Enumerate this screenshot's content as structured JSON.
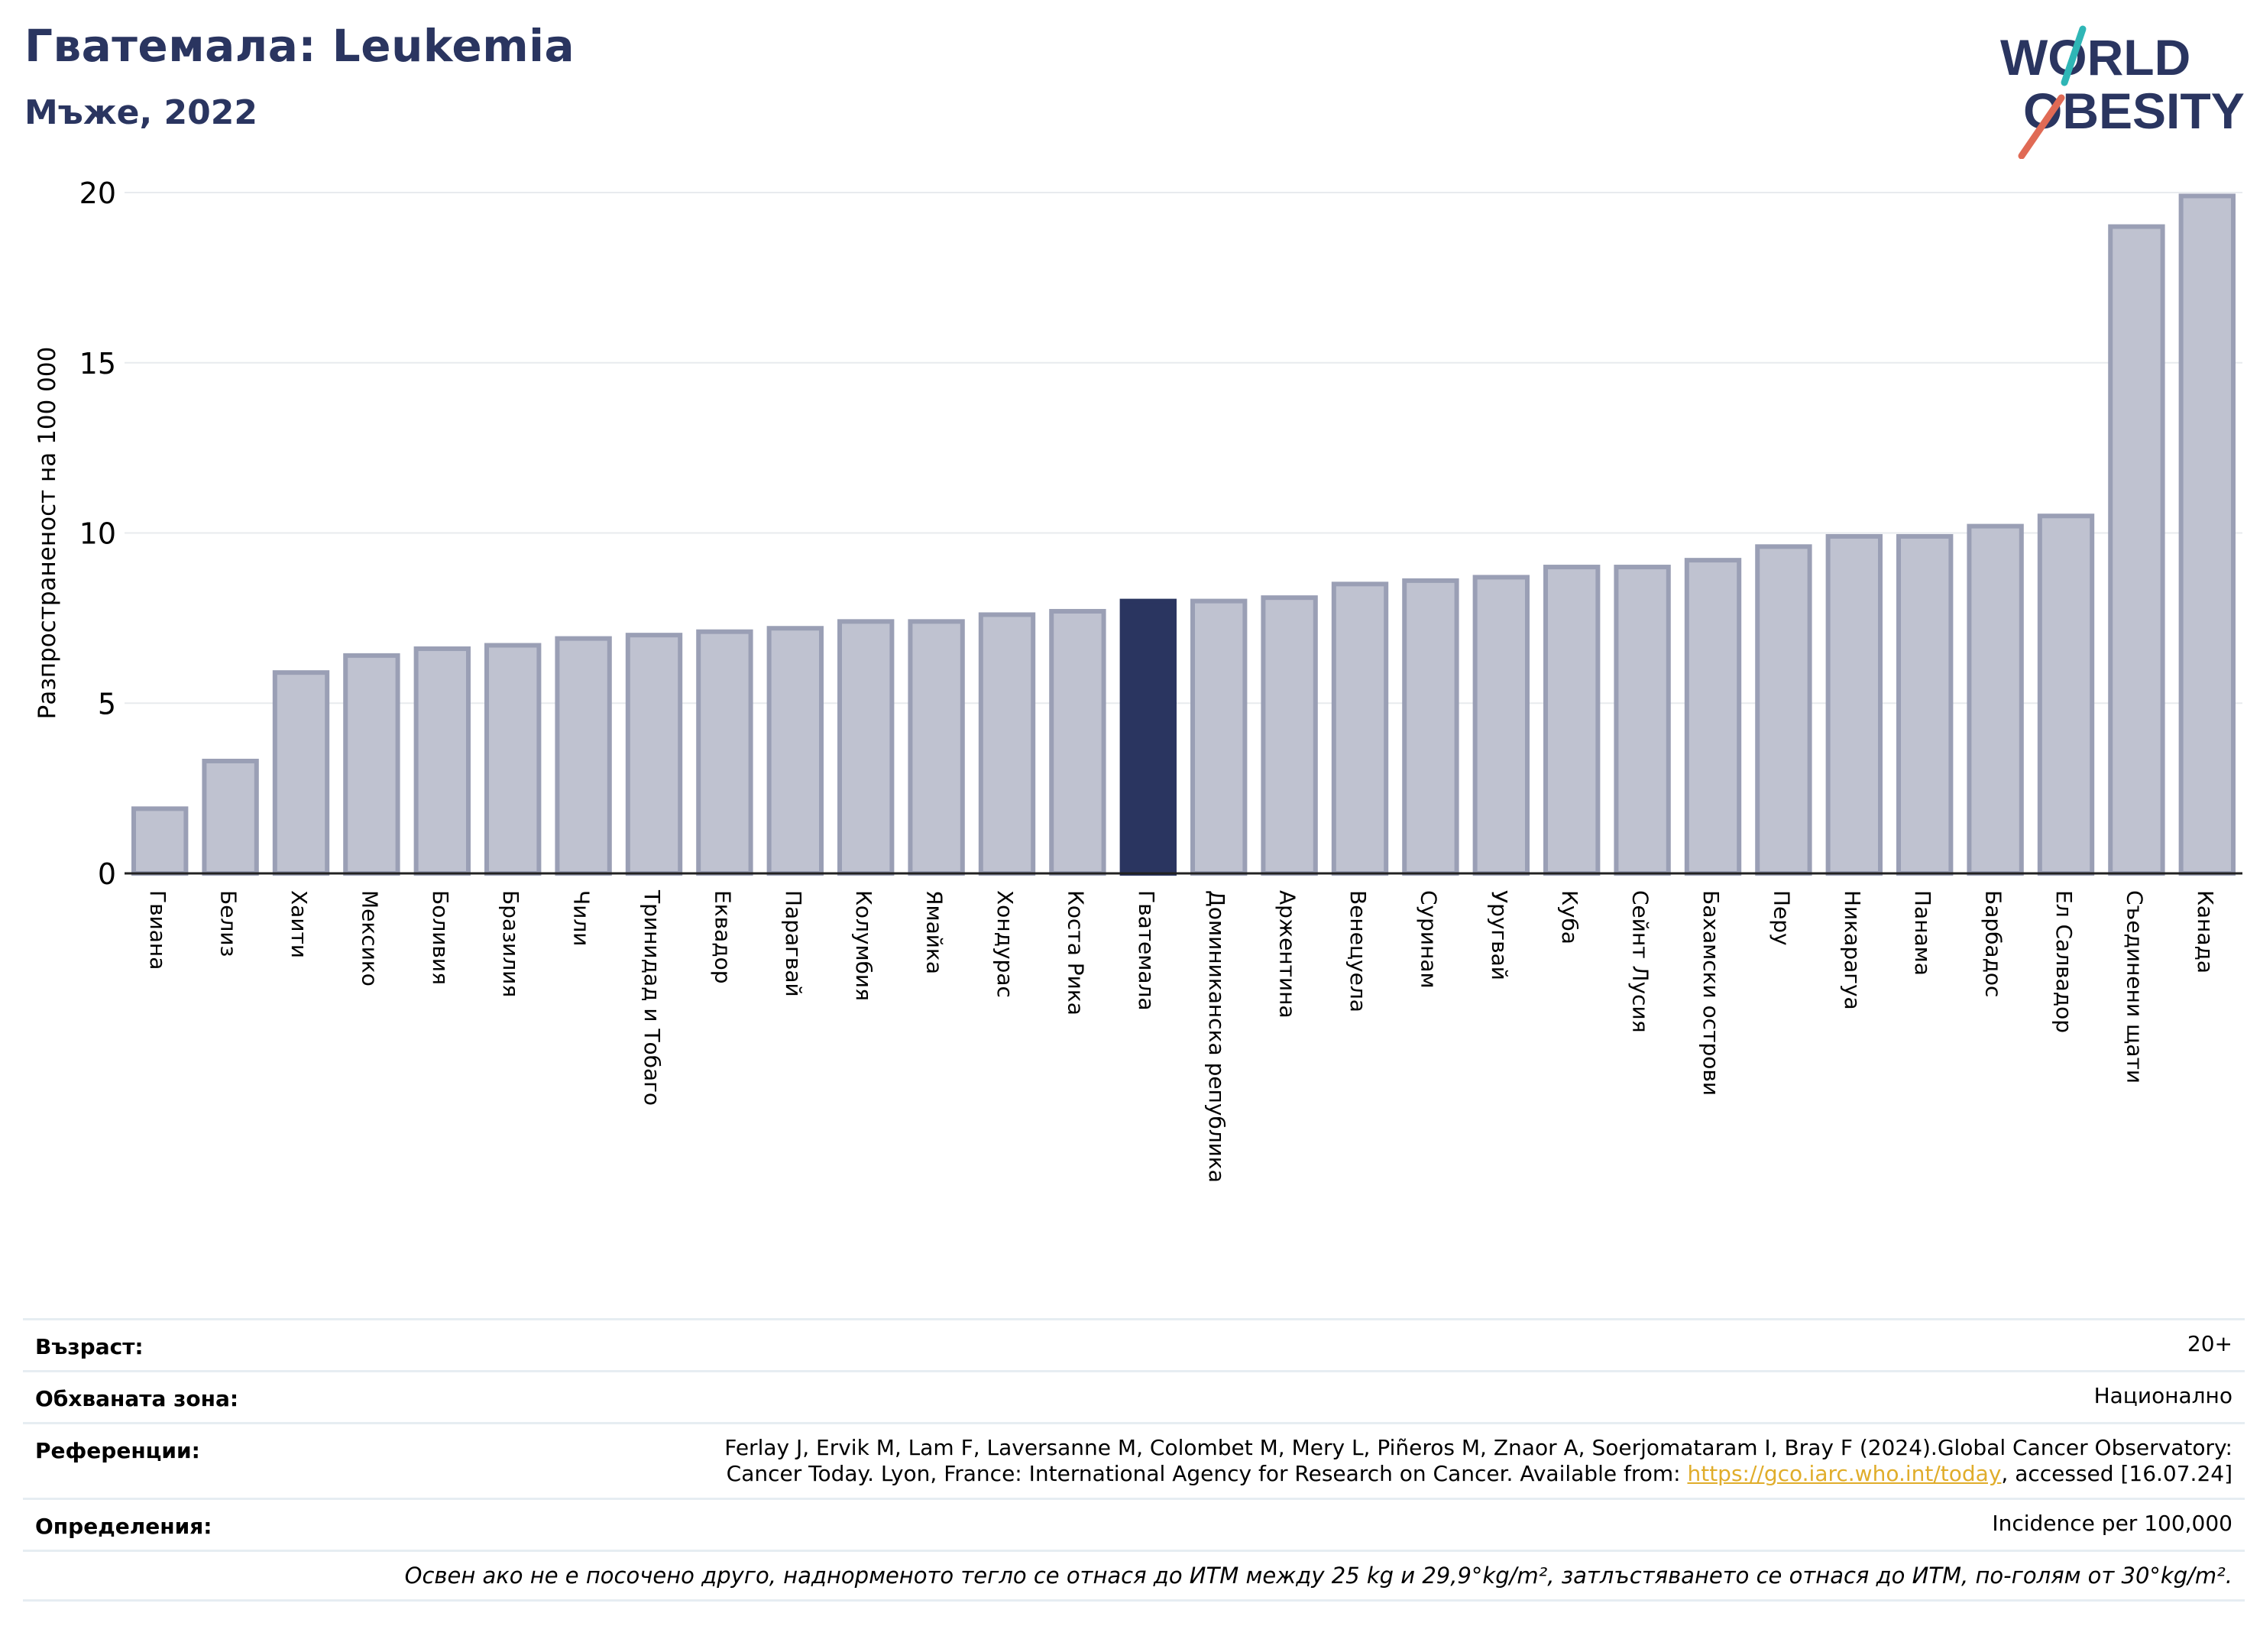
{
  "header": {
    "title": "Гватемала: Leukemia",
    "subtitle": "Мъже, 2022"
  },
  "logo": {
    "line1": "WORLD",
    "line2": "OBESITY"
  },
  "colors": {
    "bar": "#bfc2d0",
    "bar_stroke": "#9a9fb5",
    "highlight": "#2a3560",
    "grid": "#e8ebee",
    "axis": "#222222"
  },
  "chart_data": {
    "type": "bar",
    "ylabel": "Разпространеност  на 100 000",
    "ylim": [
      0,
      20
    ],
    "yticks": [
      0,
      5,
      10,
      15,
      20
    ],
    "highlight": "Гватемала",
    "categories": [
      "Гвиана",
      "Белиз",
      "Хаити",
      "Мексико",
      "Боливия",
      "Бразилия",
      "Чили",
      "Тринидад и Тобаго",
      "Еквадор",
      "Парагвай",
      "Колумбия",
      "Ямайка",
      "Хондурас",
      "Коста Рика",
      "Гватемала",
      "Доминиканска република",
      "Аржентина",
      "Венецуела",
      "Суринам",
      "Уругвай",
      "Куба",
      "Сейнт Лусия",
      "Бахамски острови",
      "Перу",
      "Никарагуа",
      "Панама",
      "Барбадос",
      "Ел Салвадор",
      "Съединени щати",
      "Канада"
    ],
    "values": [
      1.9,
      3.3,
      5.9,
      6.4,
      6.6,
      6.7,
      6.9,
      7.0,
      7.1,
      7.2,
      7.4,
      7.4,
      7.6,
      7.7,
      8.0,
      8.0,
      8.1,
      8.5,
      8.6,
      8.7,
      9.0,
      9.0,
      9.2,
      9.6,
      9.9,
      9.9,
      10.2,
      10.5,
      19.0,
      19.9
    ],
    "grid": true
  },
  "info": {
    "age_label": "Възраст:",
    "age_value": "20+",
    "area_label": "Обхваната зона:",
    "area_value": "Национално",
    "refs_label": "Референции:",
    "refs_line1": "Ferlay J, Ervik M, Lam F, Laversanne M, Colombet M, Mery L, Piñeros M, Znaor A, Soerjomataram I, Bray F (2024).Global Cancer Observatory:",
    "refs_line2_pre": "Cancer Today. Lyon, France: International Agency for Research on Cancer. Available from: ",
    "refs_link": "https://gco.iarc.who.int/today",
    "refs_line2_post": ", accessed [16.07.24]",
    "def_label": "Определения:",
    "def_value": "Incidence per 100,000",
    "note": "Освен ако не е посочено друго, наднорменото тегло се отнася до ИТМ между 25 kg и 29,9°kg/m², затлъстяването се отнася до ИТМ, по-голям от 30°kg/m²."
  }
}
